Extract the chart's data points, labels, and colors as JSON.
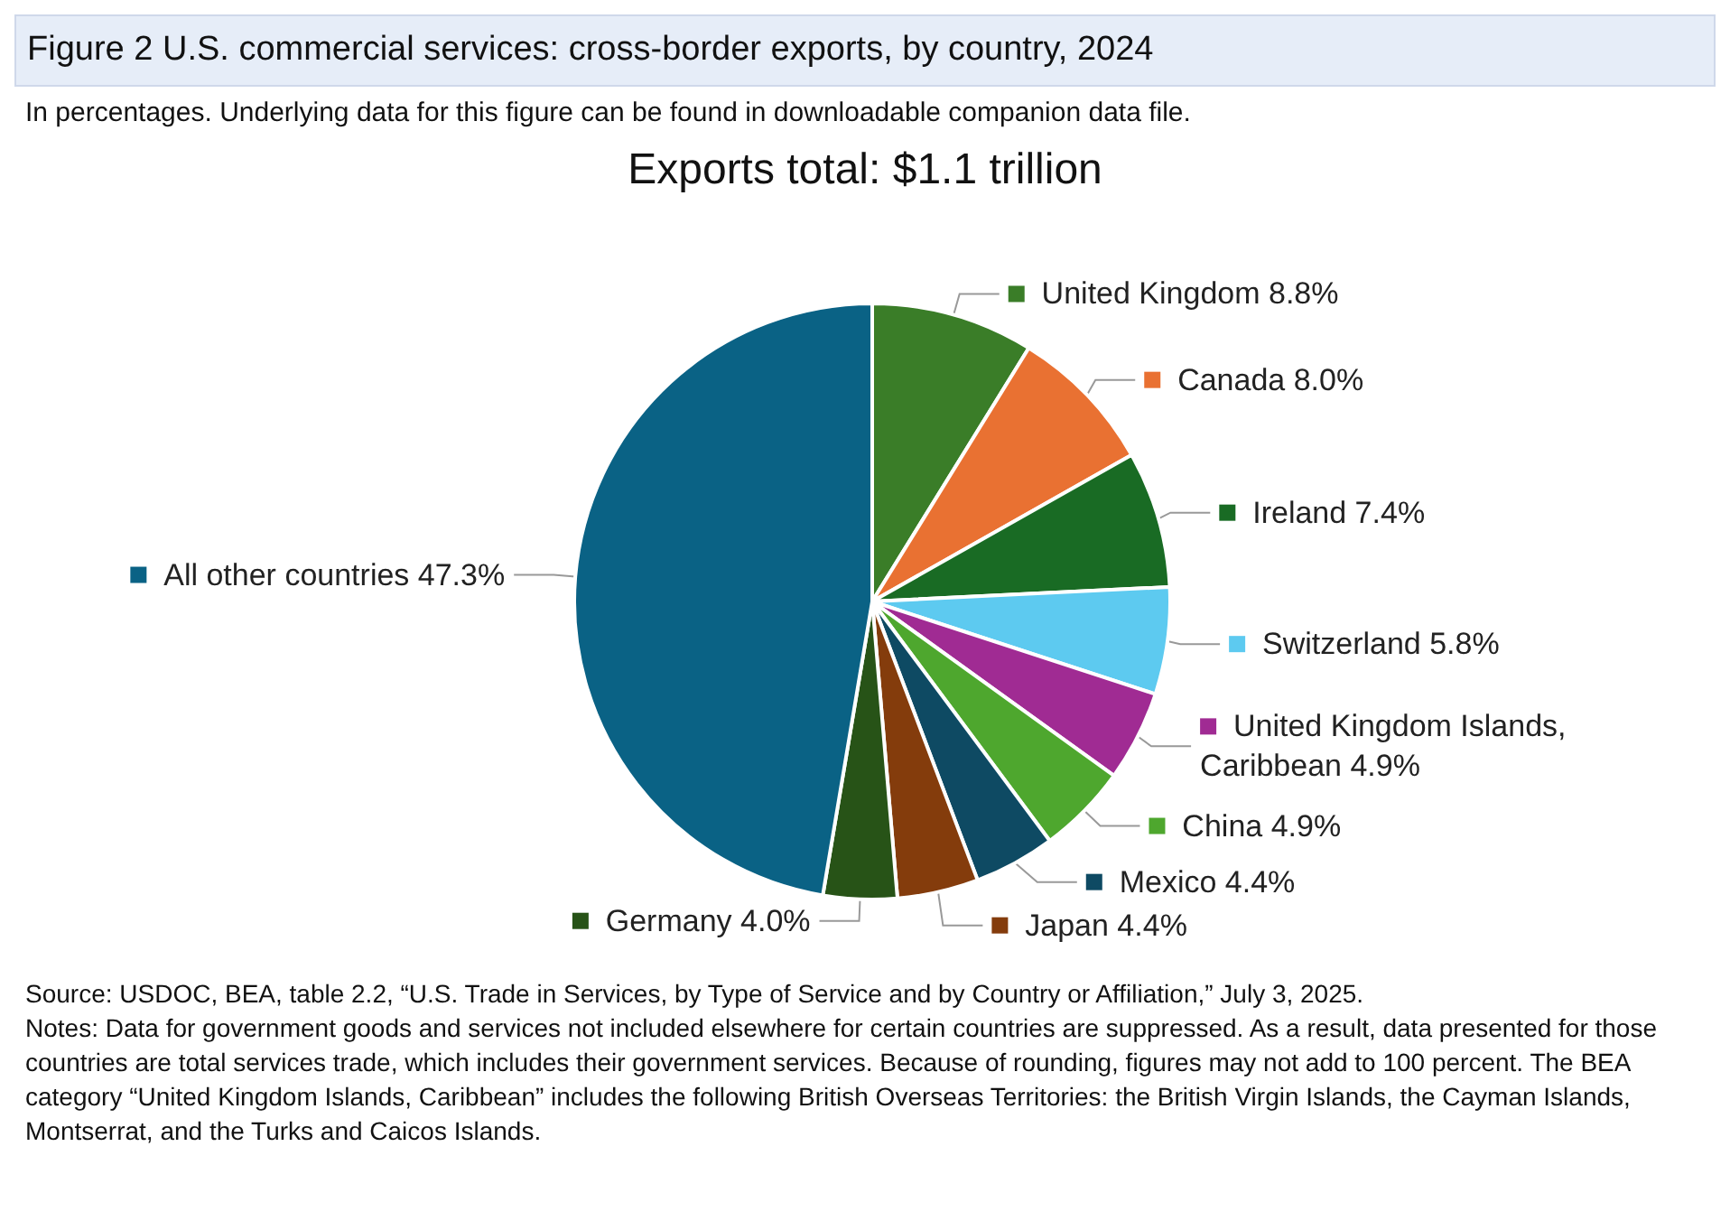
{
  "chart_data": {
    "type": "pie",
    "title": "Figure 2 U.S. commercial services: cross-border exports, by country, 2024",
    "subtitle": "In percentages. Underlying data for this figure can be found in downloadable companion data file.",
    "annotations": [
      "Exports total: $1.1 trillion",
      "Source: USDOC, BEA, table 2.2, “U.S. Trade in Services, by Type of Service and by Country or Affiliation,” July 3, 2025.",
      "Notes: Data for government goods and services not included elsewhere for certain countries are suppressed. As a result, data presented for those countries are total services trade, which includes their government services. Because of rounding, figures may not add to 100 percent. The BEA category “United Kingdom Islands, Caribbean” includes the following British Overseas Territories: the British Virgin Islands, the Cayman Islands, Montserrat, and the Turks and Caicos Islands."
    ],
    "categories": [
      "United Kingdom",
      "Canada",
      "Ireland",
      "Switzerland",
      "United Kingdom Islands, Caribbean",
      "China",
      "Mexico",
      "Japan",
      "Germany",
      "All other countries"
    ],
    "values": [
      8.8,
      8.0,
      7.4,
      5.8,
      4.9,
      4.9,
      4.4,
      4.4,
      4.0,
      47.3
    ],
    "colors": [
      "#3a7d28",
      "#e97132",
      "#196b24",
      "#5dcaf0",
      "#a02b93",
      "#4ea72e",
      "#0e4a63",
      "#843c0c",
      "#275317",
      "#0a6285"
    ],
    "legend": "right",
    "value_labels": [
      "8.8%",
      "8.0%",
      "7.4%",
      "5.8%",
      "4.9%",
      "4.9%",
      "4.4%",
      "4.4%",
      "4.0%",
      "47.3%"
    ]
  }
}
